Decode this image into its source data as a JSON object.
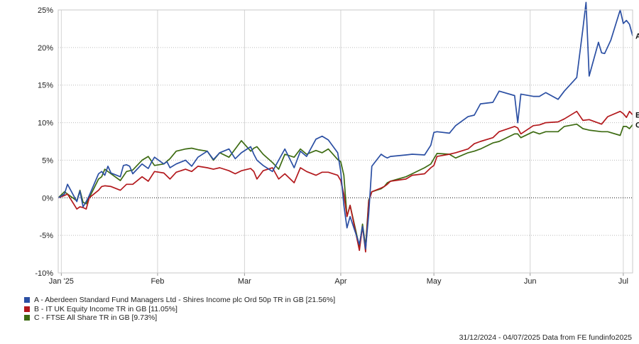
{
  "chart_data": {
    "type": "line",
    "x_start": "31/12/2024",
    "x_end": "04/07/2025",
    "x_tick_labels": [
      "Jan '25",
      "Feb",
      "Mar",
      "Apr",
      "May",
      "Jun",
      "Jul"
    ],
    "x_tick_dates": [
      "2025-01-01",
      "2025-02-01",
      "2025-03-01",
      "2025-04-01",
      "2025-05-01",
      "2025-06-01",
      "2025-07-01"
    ],
    "y_tick_values": [
      -10,
      -5,
      0,
      5,
      10,
      15,
      20,
      25
    ],
    "y_tick_labels": [
      "-10%",
      "-5%",
      "0%",
      "5%",
      "10%",
      "15%",
      "20%",
      "25%"
    ],
    "ylim": [
      -10,
      25
    ],
    "grid": true,
    "zero_line": "dotted",
    "series": [
      {
        "name": "A - Aberdeen Standard Fund Managers Ltd - Shires Income plc Ord 50p TR in GB [21.56%]",
        "end_label": "A",
        "color": "#2b4fa3",
        "x": [
          "2024-12-31",
          "2025-01-02",
          "2025-01-03",
          "2025-01-06",
          "2025-01-07",
          "2025-01-08",
          "2025-01-09",
          "2025-01-10",
          "2025-01-13",
          "2025-01-14",
          "2025-01-15",
          "2025-01-16",
          "2025-01-17",
          "2025-01-20",
          "2025-01-21",
          "2025-01-22",
          "2025-01-23",
          "2025-01-24",
          "2025-01-27",
          "2025-01-28",
          "2025-01-29",
          "2025-01-30",
          "2025-01-31",
          "2025-02-03",
          "2025-02-04",
          "2025-02-05",
          "2025-02-07",
          "2025-02-10",
          "2025-02-12",
          "2025-02-14",
          "2025-02-17",
          "2025-02-19",
          "2025-02-21",
          "2025-02-24",
          "2025-02-26",
          "2025-02-28",
          "2025-03-03",
          "2025-03-04",
          "2025-03-05",
          "2025-03-07",
          "2025-03-10",
          "2025-03-12",
          "2025-03-14",
          "2025-03-17",
          "2025-03-19",
          "2025-03-21",
          "2025-03-24",
          "2025-03-26",
          "2025-03-28",
          "2025-03-31",
          "2025-04-01",
          "2025-04-02",
          "2025-04-03",
          "2025-04-04",
          "2025-04-07",
          "2025-04-08",
          "2025-04-09",
          "2025-04-10",
          "2025-04-11",
          "2025-04-14",
          "2025-04-15",
          "2025-04-16",
          "2025-04-17",
          "2025-04-22",
          "2025-04-24",
          "2025-04-28",
          "2025-04-30",
          "2025-05-01",
          "2025-05-02",
          "2025-05-06",
          "2025-05-08",
          "2025-05-12",
          "2025-05-14",
          "2025-05-16",
          "2025-05-20",
          "2025-05-22",
          "2025-05-27",
          "2025-05-28",
          "2025-05-29",
          "2025-06-02",
          "2025-06-04",
          "2025-06-06",
          "2025-06-10",
          "2025-06-12",
          "2025-06-16",
          "2025-06-18",
          "2025-06-19",
          "2025-06-20",
          "2025-06-23",
          "2025-06-24",
          "2025-06-25",
          "2025-06-27",
          "2025-06-30",
          "2025-07-01",
          "2025-07-02",
          "2025-07-03",
          "2025-07-04"
        ],
        "values": [
          0,
          0.5,
          1.8,
          -0.5,
          0.9,
          -1.2,
          -0.5,
          0.3,
          3.2,
          3.5,
          3,
          4.2,
          3.3,
          2.8,
          4.3,
          4.4,
          4.2,
          3.2,
          4.5,
          4.2,
          3.9,
          4.7,
          5.4,
          4.5,
          4.8,
          4,
          4.5,
          5,
          4.2,
          5.4,
          6.2,
          5.1,
          6,
          6.5,
          5.2,
          6,
          6.8,
          5.8,
          5,
          4.3,
          3.5,
          5,
          6.5,
          4,
          6.2,
          5.5,
          7.8,
          8.2,
          7.7,
          6,
          3.5,
          -1,
          -4,
          -2.5,
          -6.2,
          -3.8,
          -6.8,
          -2.2,
          4.2,
          5.8,
          5.5,
          5.3,
          5.5,
          5.7,
          5.8,
          5.7,
          7,
          8.7,
          8.8,
          8.6,
          9.6,
          10.8,
          11,
          12.5,
          12.7,
          14.2,
          13.6,
          10,
          13.8,
          13.5,
          13.5,
          14,
          13.1,
          14.2,
          16,
          22.5,
          26,
          16.2,
          20.7,
          19.3,
          19.2,
          21,
          25,
          23.2,
          23.6,
          23.1,
          21.56
        ]
      },
      {
        "name": "B - IT UK Equity Income TR in GB [11.05%]",
        "end_label": "B",
        "color": "#b3191d",
        "x": [
          "2024-12-31",
          "2025-01-02",
          "2025-01-03",
          "2025-01-06",
          "2025-01-07",
          "2025-01-08",
          "2025-01-09",
          "2025-01-10",
          "2025-01-13",
          "2025-01-14",
          "2025-01-15",
          "2025-01-17",
          "2025-01-20",
          "2025-01-22",
          "2025-01-24",
          "2025-01-27",
          "2025-01-29",
          "2025-01-31",
          "2025-02-03",
          "2025-02-05",
          "2025-02-07",
          "2025-02-10",
          "2025-02-12",
          "2025-02-14",
          "2025-02-17",
          "2025-02-19",
          "2025-02-21",
          "2025-02-24",
          "2025-02-26",
          "2025-02-28",
          "2025-03-03",
          "2025-03-04",
          "2025-03-05",
          "2025-03-07",
          "2025-03-10",
          "2025-03-12",
          "2025-03-14",
          "2025-03-17",
          "2025-03-19",
          "2025-03-21",
          "2025-03-24",
          "2025-03-26",
          "2025-03-28",
          "2025-03-31",
          "2025-04-01",
          "2025-04-02",
          "2025-04-03",
          "2025-04-04",
          "2025-04-07",
          "2025-04-08",
          "2025-04-09",
          "2025-04-10",
          "2025-04-11",
          "2025-04-14",
          "2025-04-15",
          "2025-04-16",
          "2025-04-17",
          "2025-04-22",
          "2025-04-24",
          "2025-04-28",
          "2025-04-30",
          "2025-05-01",
          "2025-05-02",
          "2025-05-06",
          "2025-05-08",
          "2025-05-12",
          "2025-05-14",
          "2025-05-16",
          "2025-05-20",
          "2025-05-22",
          "2025-05-27",
          "2025-05-28",
          "2025-05-29",
          "2025-06-02",
          "2025-06-04",
          "2025-06-06",
          "2025-06-10",
          "2025-06-12",
          "2025-06-16",
          "2025-06-18",
          "2025-06-20",
          "2025-06-24",
          "2025-06-26",
          "2025-06-30",
          "2025-07-01",
          "2025-07-02",
          "2025-07-03",
          "2025-07-04"
        ],
        "values": [
          0,
          0.3,
          0.5,
          -1.5,
          -1.2,
          -1.3,
          -1.5,
          0,
          1,
          1.5,
          1.6,
          1.5,
          1,
          1.8,
          1.8,
          2.8,
          2.2,
          3.5,
          3.3,
          2.5,
          3.4,
          3.8,
          3.5,
          4.2,
          4,
          3.8,
          4,
          3.6,
          3.2,
          3.6,
          3.9,
          3.5,
          2.5,
          3.6,
          4,
          2.5,
          3.2,
          2,
          4,
          3.5,
          3,
          3.4,
          3.4,
          3,
          2.3,
          0.5,
          -2.5,
          -1,
          -7,
          -3.8,
          -7.2,
          -0.5,
          0.8,
          1.3,
          1.5,
          1.8,
          2.2,
          2.5,
          3,
          3.2,
          4,
          4.3,
          5.5,
          5.8,
          6,
          6.5,
          7.2,
          7.5,
          8,
          8.8,
          9.5,
          9.3,
          8.5,
          9.6,
          9.7,
          10,
          10.1,
          10.5,
          11.5,
          10.3,
          10.4,
          9.8,
          10.8,
          11.5,
          11.2,
          10.7,
          11.5,
          11.05
        ]
      },
      {
        "name": "C - FTSE All Share TR in GB [9.73%]",
        "end_label": "C",
        "color": "#3d6b12",
        "x": [
          "2024-12-31",
          "2025-01-02",
          "2025-01-03",
          "2025-01-06",
          "2025-01-07",
          "2025-01-08",
          "2025-01-09",
          "2025-01-10",
          "2025-01-13",
          "2025-01-14",
          "2025-01-15",
          "2025-01-17",
          "2025-01-20",
          "2025-01-22",
          "2025-01-24",
          "2025-01-27",
          "2025-01-29",
          "2025-01-31",
          "2025-02-03",
          "2025-02-05",
          "2025-02-07",
          "2025-02-10",
          "2025-02-12",
          "2025-02-14",
          "2025-02-17",
          "2025-02-19",
          "2025-02-21",
          "2025-02-24",
          "2025-02-26",
          "2025-02-28",
          "2025-03-03",
          "2025-03-04",
          "2025-03-05",
          "2025-03-07",
          "2025-03-10",
          "2025-03-12",
          "2025-03-14",
          "2025-03-17",
          "2025-03-19",
          "2025-03-21",
          "2025-03-24",
          "2025-03-26",
          "2025-03-28",
          "2025-03-31",
          "2025-04-01",
          "2025-04-02",
          "2025-04-03",
          "2025-04-04",
          "2025-04-07",
          "2025-04-08",
          "2025-04-09",
          "2025-04-10",
          "2025-04-11",
          "2025-04-14",
          "2025-04-15",
          "2025-04-16",
          "2025-04-17",
          "2025-04-22",
          "2025-04-24",
          "2025-04-28",
          "2025-04-30",
          "2025-05-01",
          "2025-05-02",
          "2025-05-06",
          "2025-05-08",
          "2025-05-12",
          "2025-05-14",
          "2025-05-16",
          "2025-05-20",
          "2025-05-22",
          "2025-05-27",
          "2025-05-28",
          "2025-05-29",
          "2025-06-02",
          "2025-06-04",
          "2025-06-06",
          "2025-06-10",
          "2025-06-12",
          "2025-06-16",
          "2025-06-18",
          "2025-06-20",
          "2025-06-24",
          "2025-06-26",
          "2025-06-30",
          "2025-07-01",
          "2025-07-02",
          "2025-07-03",
          "2025-07-04"
        ],
        "values": [
          0,
          0.8,
          0.5,
          -0.4,
          1,
          -0.6,
          -0.8,
          0,
          2.5,
          2.8,
          3.8,
          3.2,
          2.3,
          3.5,
          3.7,
          5,
          5.5,
          4.3,
          4.5,
          5.2,
          6.2,
          6.5,
          6.6,
          6.4,
          6.2,
          5,
          6,
          5.4,
          6.5,
          7.6,
          6.2,
          6.6,
          6.8,
          5.8,
          4.7,
          3.8,
          5.8,
          5.4,
          6.5,
          5.8,
          6.3,
          6,
          6.5,
          5.1,
          4.8,
          3,
          -2.5,
          -1,
          -6.5,
          -3.5,
          -6.5,
          -0.3,
          0.8,
          1.2,
          1.5,
          2,
          2.2,
          2.8,
          3.2,
          4,
          4.5,
          5.2,
          5.9,
          5.8,
          5.3,
          6,
          6.2,
          6.5,
          7.3,
          7.5,
          8.5,
          8.5,
          8,
          8.8,
          8.5,
          8.8,
          8.8,
          9.5,
          9.8,
          9.2,
          9,
          8.8,
          8.8,
          8.3,
          9.5,
          9.5,
          9.2,
          9.73
        ]
      }
    ]
  },
  "legend": [
    {
      "label": "A - Aberdeen Standard Fund Managers Ltd - Shires Income plc Ord 50p TR in GB [21.56%]",
      "color": "#2b4fa3"
    },
    {
      "label": "B - IT UK Equity Income TR in GB [11.05%]",
      "color": "#b3191d"
    },
    {
      "label": "C - FTSE All Share TR in GB [9.73%]",
      "color": "#3d6b12"
    }
  ],
  "footer": "31/12/2024 - 04/07/2025 Data from FE fundinfo2025"
}
